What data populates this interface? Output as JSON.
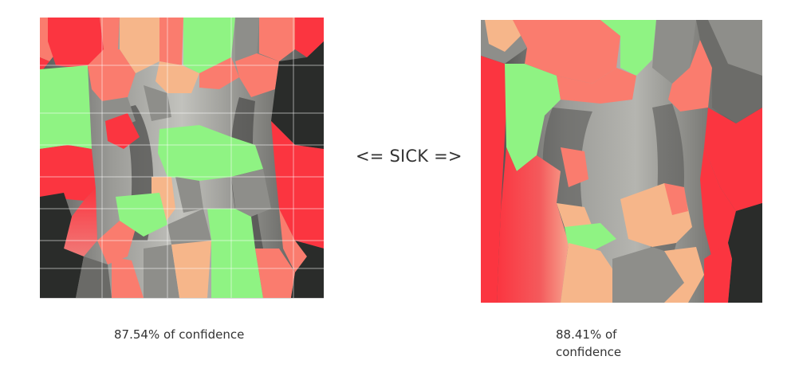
{
  "center_label": "<= SICK =>",
  "left_panel": {
    "caption": "87.54% of confidence"
  },
  "right_panel": {
    "caption": "88.41% of confidence"
  },
  "colors": {
    "red": "#fb3540",
    "salmon": "#fa7c6e",
    "peach": "#f6b68a",
    "green": "#8ff383",
    "dark": "#2a2c2a",
    "gray": "#8e8e8a"
  }
}
